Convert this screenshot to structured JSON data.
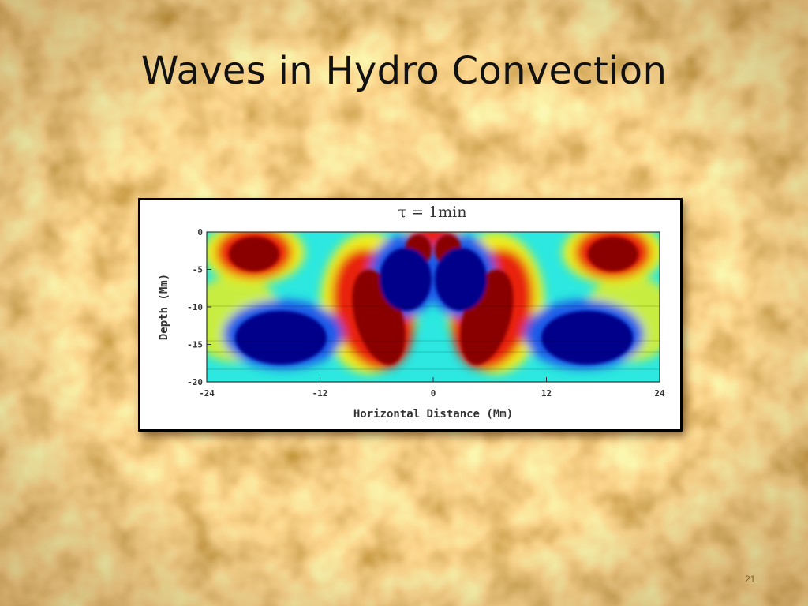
{
  "slide": {
    "title": "Waves in Hydro Convection",
    "number": "21"
  },
  "figure": {
    "plot_title": "τ = 1min",
    "xlabel": "Horizontal Distance (Mm)",
    "ylabel": "Depth (Mm)",
    "x_ticks": [
      "-24",
      "-12",
      "0",
      "12",
      "24"
    ],
    "y_ticks": [
      "0",
      "-5",
      "-10",
      "-15",
      "-20"
    ],
    "colors": {
      "dark_red": "#8a0000",
      "red": "#e8200e",
      "yellow": "#f0ee1a",
      "cyan": "#2ce8e0",
      "blue": "#0a1ab0",
      "dark_blue": "#00008a"
    }
  }
}
